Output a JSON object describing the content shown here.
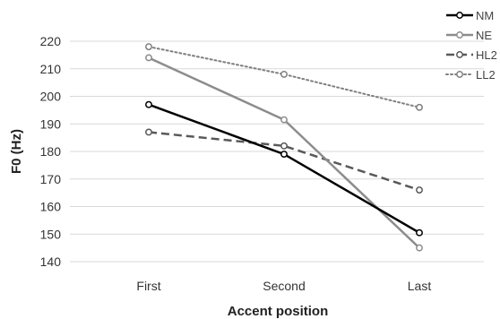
{
  "chart_data": {
    "type": "line",
    "title": "",
    "xlabel": "Accent position",
    "ylabel": "F0 (Hz)",
    "categories": [
      "First",
      "Second",
      "Last"
    ],
    "ylim": [
      140,
      220
    ],
    "yticks": [
      140,
      150,
      160,
      170,
      180,
      190,
      200,
      210,
      220
    ],
    "grid": "horizontal",
    "legend": "top-right",
    "series": [
      {
        "name": "NM",
        "values": [
          197,
          179,
          150.5
        ],
        "color": "#000000",
        "dash": "solid"
      },
      {
        "name": "NE",
        "values": [
          214,
          191.5,
          145
        ],
        "color": "#8c8c8c",
        "dash": "solid"
      },
      {
        "name": "HL2",
        "values": [
          187,
          182,
          166
        ],
        "color": "#595959",
        "dash": "dashed"
      },
      {
        "name": "LL2",
        "values": [
          218,
          208,
          196
        ],
        "color": "#7f7f7f",
        "dash": "dotted"
      }
    ]
  }
}
